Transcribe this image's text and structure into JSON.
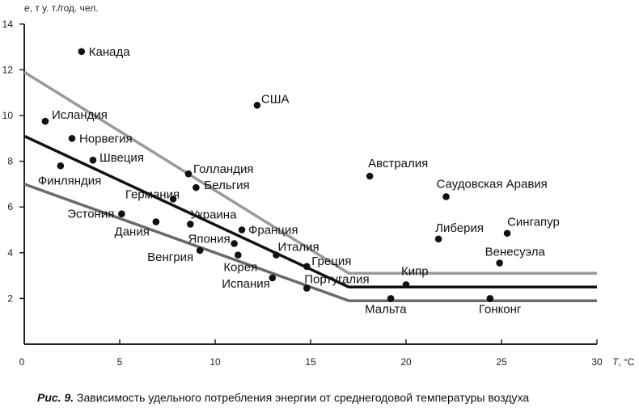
{
  "chart_data": {
    "type": "scatter",
    "ylabel_var": "e",
    "ylabel_unit": ", т у. т./год. чел.",
    "xlabel_var": "T",
    "xlabel_unit": ", °C",
    "xlim": [
      0,
      30
    ],
    "ylim": [
      0,
      14
    ],
    "xticks": [
      0,
      5,
      10,
      15,
      20,
      25,
      30
    ],
    "yticks": [
      2,
      4,
      6,
      8,
      10,
      12,
      14
    ],
    "grid": false,
    "points": [
      {
        "label": "Канада",
        "x": 3.0,
        "y": 12.8
      },
      {
        "label": "Исландия",
        "x": 1.1,
        "y": 9.75
      },
      {
        "label": "Норвегия",
        "x": 2.5,
        "y": 9.0
      },
      {
        "label": "Швеция",
        "x": 3.6,
        "y": 8.05
      },
      {
        "label": "Финляндия",
        "x": 1.9,
        "y": 7.8
      },
      {
        "label": "Германия",
        "x": 7.8,
        "y": 6.35
      },
      {
        "label": "Эстония",
        "x": 5.1,
        "y": 5.7
      },
      {
        "label": "Дания",
        "x": 6.9,
        "y": 5.35
      },
      {
        "label": "Украина",
        "x": 8.7,
        "y": 5.25
      },
      {
        "label": "Голландия",
        "x": 8.6,
        "y": 7.45
      },
      {
        "label": "Бельгия",
        "x": 9.0,
        "y": 6.85
      },
      {
        "label": "Франция",
        "x": 11.4,
        "y": 5.0
      },
      {
        "label": "Япония",
        "x": 11.0,
        "y": 4.4
      },
      {
        "label": "Венгрия",
        "x": 9.2,
        "y": 4.1
      },
      {
        "label": "Корея",
        "x": 11.2,
        "y": 3.9
      },
      {
        "label": "Италия",
        "x": 13.2,
        "y": 3.9
      },
      {
        "label": "Греция",
        "x": 14.8,
        "y": 3.4
      },
      {
        "label": "Испания",
        "x": 13.0,
        "y": 2.9
      },
      {
        "label": "Португалия",
        "x": 14.8,
        "y": 2.45
      },
      {
        "label": "США",
        "x": 12.2,
        "y": 10.45
      },
      {
        "label": "Австралия",
        "x": 18.1,
        "y": 7.35
      },
      {
        "label": "Саудовская Аравия",
        "x": 22.1,
        "y": 6.45
      },
      {
        "label": "Либерия",
        "x": 21.7,
        "y": 4.6
      },
      {
        "label": "Сингапур",
        "x": 25.3,
        "y": 4.85
      },
      {
        "label": "Венесуэла",
        "x": 24.9,
        "y": 3.55
      },
      {
        "label": "Кипр",
        "x": 20.0,
        "y": 2.6
      },
      {
        "label": "Мальта",
        "x": 19.2,
        "y": 2.0
      },
      {
        "label": "Гонконг",
        "x": 24.4,
        "y": 2.0
      }
    ],
    "lines": [
      {
        "color": "#9a9a9a",
        "points": [
          [
            0,
            11.9
          ],
          [
            17,
            3.1
          ],
          [
            30,
            3.1
          ]
        ]
      },
      {
        "color": "#111111",
        "points": [
          [
            0,
            9.1
          ],
          [
            17,
            2.5
          ],
          [
            30,
            2.5
          ]
        ]
      },
      {
        "color": "#6a6a6a",
        "points": [
          [
            0,
            7.0
          ],
          [
            17,
            1.9
          ],
          [
            30,
            1.9
          ]
        ]
      }
    ]
  },
  "caption": {
    "label": "Рис. 9.",
    "text": " Зависимость удельного потребления энергии от среднегодовой температуры воздуха"
  }
}
